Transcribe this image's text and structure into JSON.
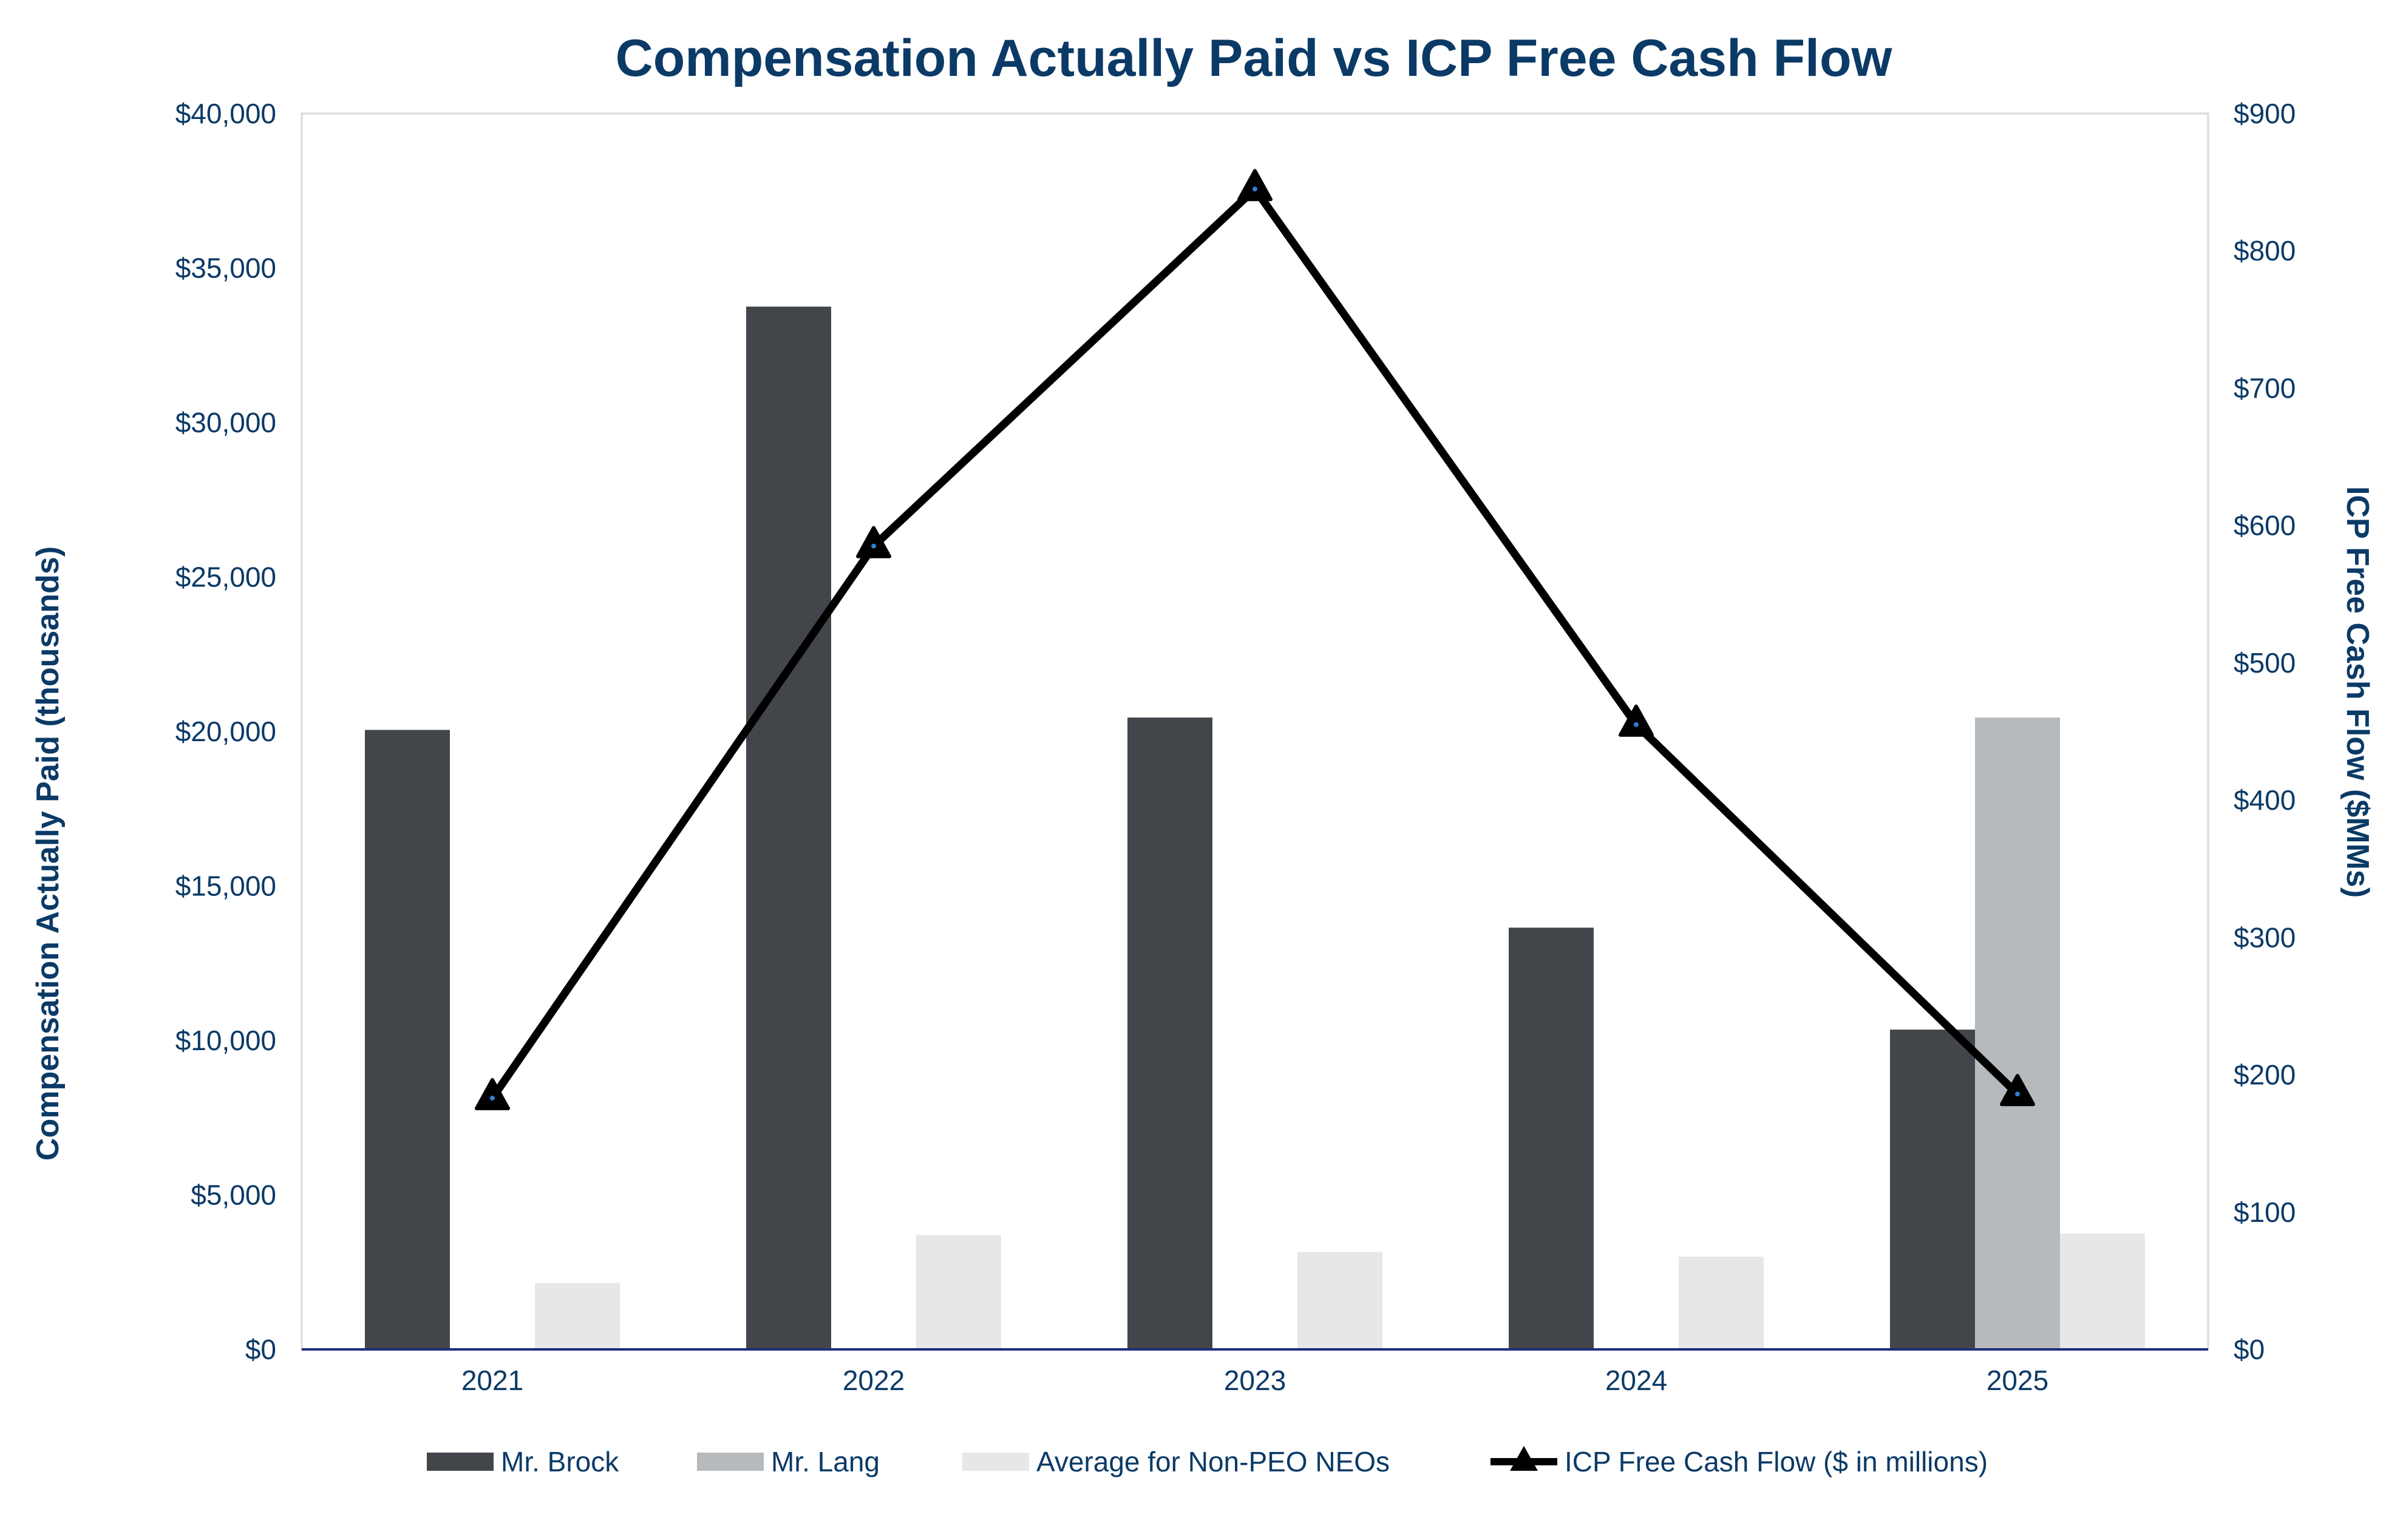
{
  "chart_data": {
    "type": "bar",
    "title": "Compensation Actually Paid vs ICP Free Cash Flow",
    "categories": [
      "2021",
      "2022",
      "2023",
      "2024",
      "2025"
    ],
    "ylabel": "Compensation Actually Paid (thousands)",
    "y2label": "ICP Free Cash Flow ($MMs)",
    "ylim": [
      0,
      40000
    ],
    "y2lim": [
      0,
      900
    ],
    "y_ticks": [
      "$0",
      "$5,000",
      "$10,000",
      "$15,000",
      "$20,000",
      "$25,000",
      "$30,000",
      "$35,000",
      "$40,000"
    ],
    "y2_ticks": [
      "$0",
      "$100",
      "$200",
      "$300",
      "$400",
      "$500",
      "$600",
      "$700",
      "$800",
      "$900"
    ],
    "grid": false,
    "legend_position": "bottom",
    "series": [
      {
        "name": "Mr. Brock",
        "type": "bar",
        "axis": "left",
        "color": "#42464b",
        "values": [
          20050,
          33750,
          20450,
          13650,
          10350
        ]
      },
      {
        "name": "Mr. Lang",
        "type": "bar",
        "axis": "left",
        "color": "#b6babd",
        "values": [
          null,
          null,
          null,
          null,
          20450
        ]
      },
      {
        "name": "Average for Non-PEO NEOs",
        "type": "bar",
        "axis": "left",
        "color": "#e6e7e8",
        "values": [
          2150,
          3700,
          3150,
          3000,
          3750
        ]
      },
      {
        "name": "ICP Free Cash Flow ($ in millions)",
        "type": "line",
        "axis": "right",
        "color": "#000000",
        "marker": "triangle",
        "values": [
          183,
          585,
          845,
          455,
          186
        ]
      }
    ]
  }
}
